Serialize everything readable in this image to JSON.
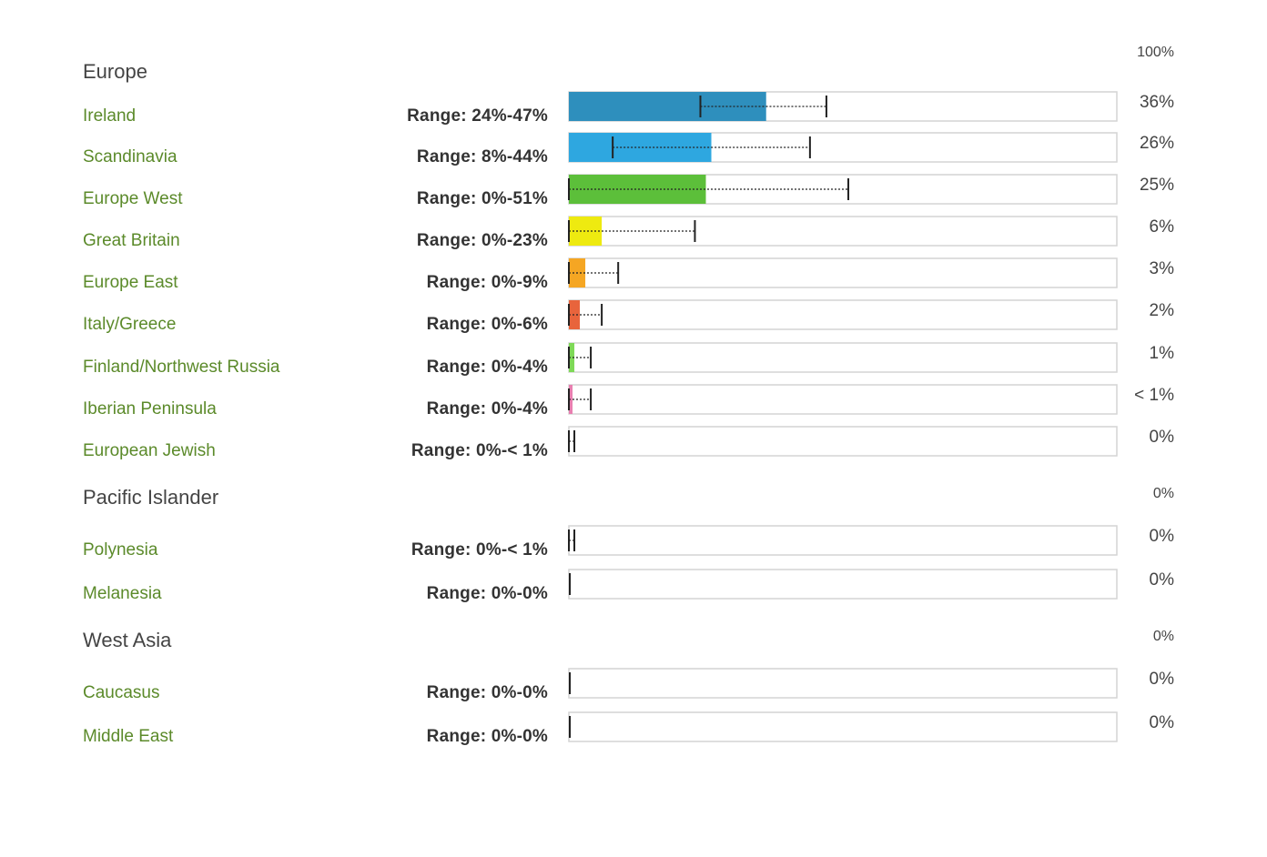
{
  "chart_data": {
    "type": "bar",
    "top_label": "100%",
    "xlim": [
      0,
      100
    ],
    "groups": [
      {
        "title": "Europe",
        "percent": "",
        "rows": [
          {
            "name": "Ireland",
            "range_label": "Range: 24%-47%",
            "value": 36,
            "low": 24,
            "high": 47,
            "percent": "36%",
            "color": "#2e8fbd"
          },
          {
            "name": "Scandinavia",
            "range_label": "Range: 8%-44%",
            "value": 26,
            "low": 8,
            "high": 44,
            "percent": "26%",
            "color": "#2ea7e0"
          },
          {
            "name": "Europe West",
            "range_label": "Range: 0%-51%",
            "value": 25,
            "low": 0,
            "high": 51,
            "percent": "25%",
            "color": "#5cbf3a"
          },
          {
            "name": "Great Britain",
            "range_label": "Range: 0%-23%",
            "value": 6,
            "low": 0,
            "high": 23,
            "percent": "6%",
            "color": "#eeea10"
          },
          {
            "name": "Europe East",
            "range_label": "Range: 0%-9%",
            "value": 3,
            "low": 0,
            "high": 9,
            "percent": "3%",
            "color": "#f5a623"
          },
          {
            "name": "Italy/Greece",
            "range_label": "Range: 0%-6%",
            "value": 2,
            "low": 0,
            "high": 6,
            "percent": "2%",
            "color": "#e8643c"
          },
          {
            "name": "Finland/Northwest Russia",
            "range_label": "Range: 0%-4%",
            "value": 1,
            "low": 0,
            "high": 4,
            "percent": "1%",
            "color": "#7ed957"
          },
          {
            "name": "Iberian Peninsula",
            "range_label": "Range: 0%-4%",
            "value": 0.5,
            "low": 0,
            "high": 4,
            "percent": "< 1%",
            "color": "#e87fb0"
          },
          {
            "name": "European Jewish",
            "range_label": "Range: 0%-< 1%",
            "value": 0,
            "low": 0,
            "high": 1,
            "percent": "0%",
            "color": "#8e6bb8"
          }
        ]
      },
      {
        "title": "Pacific Islander",
        "percent": "0%",
        "rows": [
          {
            "name": "Polynesia",
            "range_label": "Range: 0%-< 1%",
            "value": 0,
            "low": 0,
            "high": 1,
            "percent": "0%",
            "color": "#cccccc"
          },
          {
            "name": "Melanesia",
            "range_label": "Range: 0%-0%",
            "value": 0,
            "low": 0,
            "high": 0,
            "percent": "0%",
            "color": "#cccccc"
          }
        ]
      },
      {
        "title": "West Asia",
        "percent": "0%",
        "rows": [
          {
            "name": "Caucasus",
            "range_label": "Range: 0%-0%",
            "value": 0,
            "low": 0,
            "high": 0,
            "percent": "0%",
            "color": "#cccccc"
          },
          {
            "name": "Middle East",
            "range_label": "Range: 0%-0%",
            "value": 0,
            "low": 0,
            "high": 0,
            "percent": "0%",
            "color": "#cccccc"
          }
        ]
      }
    ]
  }
}
